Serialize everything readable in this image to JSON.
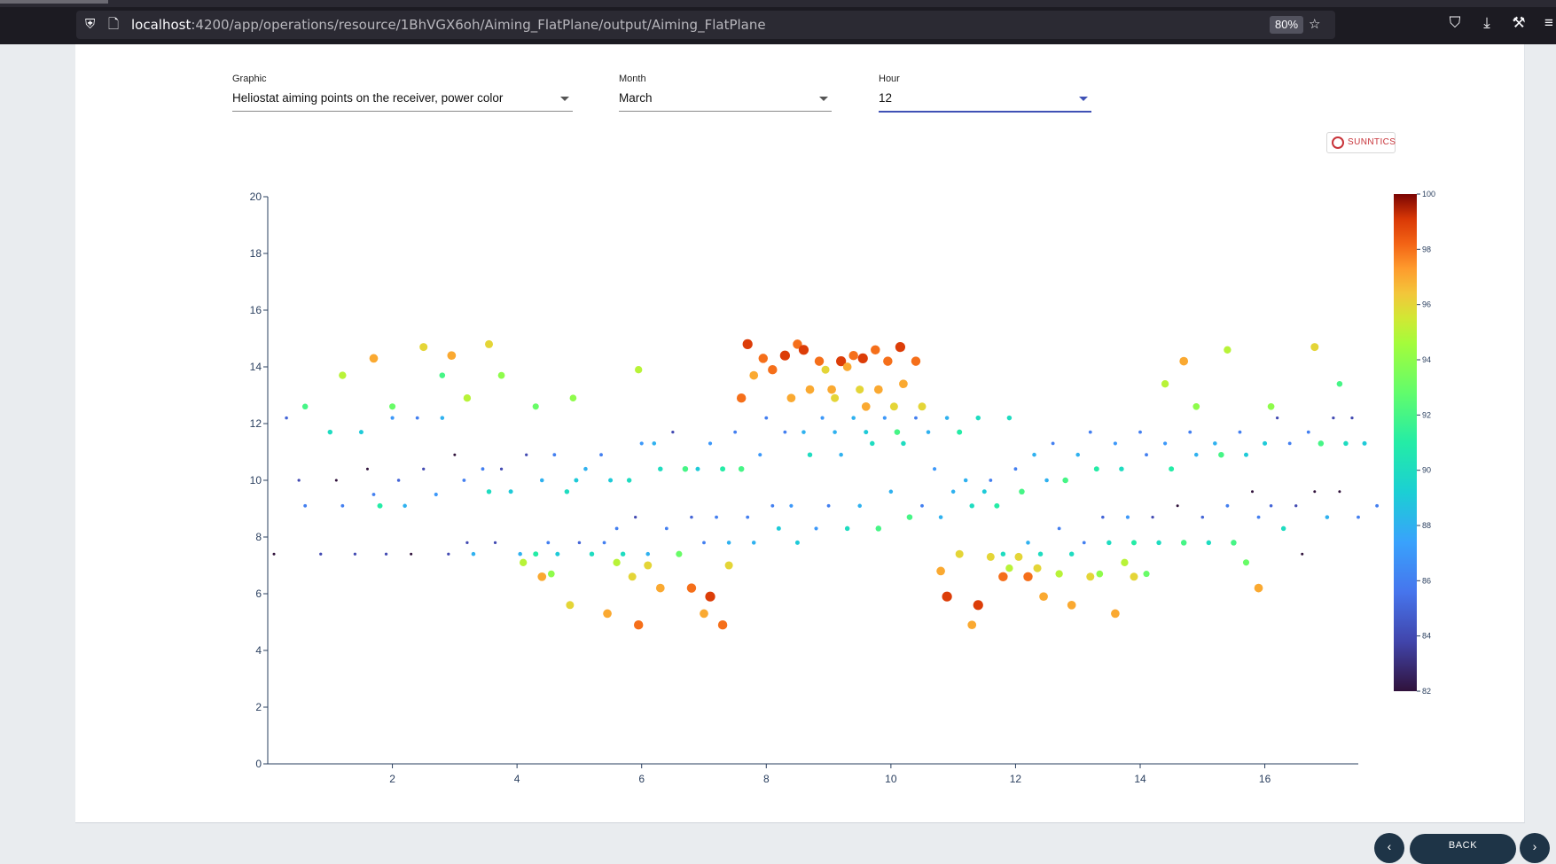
{
  "browser": {
    "url_host": "localhost",
    "url_rest": ":4200/app/operations/resource/1BhVGX6oh/Aiming_FlatPlane/output/Aiming_FlatPlane",
    "zoom": "80%"
  },
  "controls": {
    "graphic": {
      "label": "Graphic",
      "value": "Heliostat aiming points on the receiver, power color"
    },
    "month": {
      "label": "Month",
      "value": "March"
    },
    "hour": {
      "label": "Hour",
      "value": "12"
    }
  },
  "brand": {
    "name": "SUNNTICS",
    "color": "#c8343a"
  },
  "footer": {
    "back_label": "BACK"
  },
  "chart_data": {
    "type": "scatter",
    "xlim": [
      0,
      17.5
    ],
    "ylim": [
      0,
      20
    ],
    "x_ticks": [
      "2",
      "4",
      "6",
      "8",
      "10",
      "12",
      "14",
      "16"
    ],
    "y_ticks": [
      "0",
      "2",
      "4",
      "6",
      "8",
      "10",
      "12",
      "14",
      "16",
      "18",
      "20"
    ],
    "grid": false,
    "colorscale": "turbo",
    "color_range": [
      82,
      100
    ],
    "colorbar_ticks": [
      "82",
      "84",
      "86",
      "88",
      "90",
      "92",
      "94",
      "96",
      "98",
      "100"
    ],
    "points": [
      [
        0.1,
        7.4,
        82
      ],
      [
        0.3,
        12.2,
        85
      ],
      [
        0.5,
        10.0,
        84
      ],
      [
        0.6,
        9.1,
        86
      ],
      [
        0.6,
        12.6,
        92
      ],
      [
        0.85,
        7.4,
        84
      ],
      [
        1.0,
        11.7,
        90
      ],
      [
        1.1,
        10.0,
        82
      ],
      [
        1.2,
        9.1,
        86
      ],
      [
        1.4,
        7.4,
        84
      ],
      [
        1.5,
        11.7,
        89
      ],
      [
        1.6,
        10.4,
        82
      ],
      [
        1.7,
        9.5,
        86
      ],
      [
        1.8,
        9.1,
        91
      ],
      [
        1.9,
        7.4,
        84
      ],
      [
        2.0,
        12.2,
        87
      ],
      [
        2.1,
        10.0,
        85
      ],
      [
        2.2,
        9.1,
        88
      ],
      [
        2.3,
        7.4,
        82
      ],
      [
        2.4,
        12.2,
        86
      ],
      [
        2.5,
        10.4,
        84
      ],
      [
        2.7,
        9.5,
        87
      ],
      [
        2.8,
        12.2,
        88
      ],
      [
        2.9,
        7.4,
        84
      ],
      [
        3.0,
        10.9,
        82
      ],
      [
        3.15,
        10.0,
        86
      ],
      [
        3.2,
        7.8,
        84
      ],
      [
        3.3,
        7.4,
        88
      ],
      [
        3.45,
        10.4,
        86
      ],
      [
        3.55,
        9.6,
        90
      ],
      [
        3.65,
        7.8,
        84
      ],
      [
        3.75,
        10.4,
        84
      ],
      [
        3.9,
        9.6,
        89
      ],
      [
        4.05,
        7.4,
        88
      ],
      [
        4.15,
        10.9,
        84
      ],
      [
        4.3,
        7.4,
        91
      ],
      [
        4.4,
        10.0,
        88
      ],
      [
        4.5,
        7.8,
        86
      ],
      [
        4.6,
        10.9,
        86
      ],
      [
        4.65,
        7.4,
        89
      ],
      [
        4.8,
        9.6,
        90
      ],
      [
        4.95,
        10.0,
        89
      ],
      [
        5.0,
        7.8,
        85
      ],
      [
        5.1,
        10.4,
        88
      ],
      [
        5.2,
        7.4,
        90
      ],
      [
        5.35,
        10.9,
        86
      ],
      [
        5.4,
        7.8,
        86
      ],
      [
        5.5,
        10.0,
        89
      ],
      [
        5.6,
        8.3,
        86
      ],
      [
        5.7,
        7.4,
        90
      ],
      [
        5.8,
        10.0,
        90
      ],
      [
        5.9,
        8.7,
        84
      ],
      [
        6.0,
        11.3,
        87
      ],
      [
        6.1,
        7.4,
        88
      ],
      [
        6.2,
        11.3,
        88
      ],
      [
        6.3,
        10.4,
        90
      ],
      [
        6.4,
        8.3,
        86
      ],
      [
        6.5,
        11.7,
        84
      ],
      [
        6.6,
        7.4,
        93
      ],
      [
        6.7,
        10.4,
        92
      ],
      [
        6.8,
        8.7,
        85
      ],
      [
        6.9,
        10.4,
        89
      ],
      [
        7.0,
        7.8,
        86
      ],
      [
        7.1,
        11.3,
        87
      ],
      [
        7.2,
        8.7,
        86
      ],
      [
        7.3,
        10.4,
        91
      ],
      [
        7.4,
        7.8,
        88
      ],
      [
        7.5,
        11.7,
        86
      ],
      [
        7.6,
        10.4,
        92
      ],
      [
        7.7,
        8.7,
        86
      ],
      [
        7.8,
        7.8,
        88
      ],
      [
        7.9,
        10.9,
        87
      ],
      [
        8.0,
        12.2,
        86
      ],
      [
        8.1,
        9.1,
        86
      ],
      [
        8.2,
        8.3,
        89
      ],
      [
        8.3,
        11.7,
        86
      ],
      [
        8.4,
        9.1,
        87
      ],
      [
        8.5,
        7.8,
        89
      ],
      [
        8.6,
        11.7,
        88
      ],
      [
        8.7,
        10.9,
        90
      ],
      [
        8.8,
        8.3,
        87
      ],
      [
        8.9,
        12.2,
        87
      ],
      [
        9.0,
        9.1,
        86
      ],
      [
        9.1,
        11.7,
        88
      ],
      [
        9.2,
        10.9,
        88
      ],
      [
        9.3,
        8.3,
        90
      ],
      [
        9.4,
        12.2,
        88
      ],
      [
        9.5,
        9.1,
        88
      ],
      [
        9.6,
        11.7,
        89
      ],
      [
        9.7,
        11.3,
        90
      ],
      [
        9.8,
        8.3,
        92
      ],
      [
        9.9,
        12.2,
        87
      ],
      [
        10.0,
        9.6,
        88
      ],
      [
        10.1,
        11.7,
        92
      ],
      [
        10.2,
        11.3,
        90
      ],
      [
        10.3,
        8.7,
        92
      ],
      [
        10.4,
        12.2,
        86
      ],
      [
        10.5,
        9.1,
        86
      ],
      [
        10.6,
        11.7,
        88
      ],
      [
        10.7,
        10.4,
        87
      ],
      [
        10.8,
        8.7,
        88
      ],
      [
        10.9,
        12.2,
        88
      ],
      [
        11.0,
        9.6,
        88
      ],
      [
        11.1,
        11.7,
        91
      ],
      [
        11.2,
        10.0,
        88
      ],
      [
        11.3,
        9.1,
        90
      ],
      [
        11.4,
        12.2,
        90
      ],
      [
        11.5,
        9.6,
        89
      ],
      [
        11.6,
        10.0,
        86
      ],
      [
        11.7,
        9.1,
        91
      ],
      [
        11.8,
        7.4,
        90
      ],
      [
        11.9,
        12.2,
        90
      ],
      [
        12.0,
        10.4,
        86
      ],
      [
        12.1,
        9.6,
        92
      ],
      [
        12.2,
        7.8,
        88
      ],
      [
        12.3,
        10.9,
        88
      ],
      [
        12.4,
        7.4,
        90
      ],
      [
        12.5,
        10.0,
        88
      ],
      [
        12.6,
        11.3,
        86
      ],
      [
        12.7,
        8.3,
        86
      ],
      [
        12.8,
        10.0,
        92
      ],
      [
        12.9,
        7.4,
        90
      ],
      [
        13.0,
        10.9,
        88
      ],
      [
        13.1,
        7.8,
        86
      ],
      [
        13.2,
        11.7,
        86
      ],
      [
        13.3,
        10.4,
        91
      ],
      [
        13.4,
        8.7,
        85
      ],
      [
        13.5,
        7.8,
        90
      ],
      [
        13.6,
        11.3,
        87
      ],
      [
        13.7,
        10.4,
        90
      ],
      [
        13.8,
        8.7,
        87
      ],
      [
        13.9,
        7.8,
        91
      ],
      [
        14.0,
        11.7,
        86
      ],
      [
        14.1,
        10.9,
        86
      ],
      [
        14.2,
        8.7,
        84
      ],
      [
        14.3,
        7.8,
        90
      ],
      [
        14.4,
        11.3,
        87
      ],
      [
        14.5,
        10.4,
        91
      ],
      [
        14.6,
        9.1,
        82
      ],
      [
        14.7,
        7.8,
        92
      ],
      [
        14.8,
        11.7,
        86
      ],
      [
        14.9,
        10.9,
        88
      ],
      [
        15.0,
        8.7,
        85
      ],
      [
        15.1,
        7.8,
        90
      ],
      [
        15.2,
        11.3,
        88
      ],
      [
        15.3,
        10.9,
        92
      ],
      [
        15.4,
        9.1,
        86
      ],
      [
        15.5,
        7.8,
        92
      ],
      [
        15.6,
        11.7,
        86
      ],
      [
        15.7,
        10.9,
        89
      ],
      [
        15.8,
        9.6,
        82
      ],
      [
        15.9,
        8.7,
        86
      ],
      [
        16.0,
        11.3,
        89
      ],
      [
        16.1,
        9.1,
        85
      ],
      [
        16.2,
        12.2,
        84
      ],
      [
        16.3,
        8.3,
        90
      ],
      [
        16.4,
        11.3,
        86
      ],
      [
        16.5,
        9.1,
        84
      ],
      [
        16.6,
        7.4,
        82
      ],
      [
        16.7,
        11.7,
        86
      ],
      [
        16.8,
        9.6,
        82
      ],
      [
        16.9,
        11.3,
        92
      ],
      [
        17.0,
        8.7,
        88
      ],
      [
        17.1,
        12.2,
        84
      ],
      [
        17.2,
        9.6,
        82
      ],
      [
        17.3,
        11.3,
        90
      ],
      [
        17.4,
        12.2,
        84
      ],
      [
        17.5,
        8.7,
        86
      ],
      [
        17.6,
        11.3,
        89
      ],
      [
        17.8,
        9.1,
        86
      ],
      [
        1.2,
        13.7,
        95
      ],
      [
        1.7,
        14.3,
        97
      ],
      [
        2.0,
        12.6,
        93
      ],
      [
        2.5,
        14.7,
        96
      ],
      [
        2.8,
        13.7,
        92
      ],
      [
        2.95,
        14.4,
        97
      ],
      [
        3.2,
        12.9,
        95
      ],
      [
        3.55,
        14.8,
        96
      ],
      [
        3.75,
        13.7,
        94
      ],
      [
        4.3,
        12.6,
        93
      ],
      [
        4.9,
        12.9,
        94
      ],
      [
        5.95,
        13.9,
        95
      ],
      [
        4.1,
        7.1,
        95
      ],
      [
        4.4,
        6.6,
        97
      ],
      [
        4.55,
        6.7,
        94
      ],
      [
        4.85,
        5.6,
        96
      ],
      [
        5.45,
        5.3,
        97
      ],
      [
        5.6,
        7.1,
        95
      ],
      [
        5.85,
        6.6,
        96
      ],
      [
        5.95,
        4.9,
        98
      ],
      [
        6.1,
        7.0,
        96
      ],
      [
        6.3,
        6.2,
        97
      ],
      [
        6.8,
        6.2,
        98
      ],
      [
        7.0,
        5.3,
        97
      ],
      [
        7.1,
        5.9,
        99
      ],
      [
        7.3,
        4.9,
        98
      ],
      [
        7.4,
        7.0,
        96
      ],
      [
        7.6,
        12.9,
        98
      ],
      [
        7.7,
        14.8,
        99
      ],
      [
        7.8,
        13.7,
        97
      ],
      [
        7.95,
        14.3,
        98
      ],
      [
        8.1,
        13.9,
        98
      ],
      [
        8.3,
        14.4,
        99
      ],
      [
        8.4,
        12.9,
        97
      ],
      [
        8.5,
        14.8,
        98
      ],
      [
        8.6,
        14.6,
        99
      ],
      [
        8.7,
        13.2,
        97
      ],
      [
        8.85,
        14.2,
        98
      ],
      [
        8.95,
        13.9,
        96
      ],
      [
        9.05,
        13.2,
        97
      ],
      [
        9.1,
        12.9,
        96
      ],
      [
        9.2,
        14.2,
        99
      ],
      [
        9.3,
        14.0,
        97
      ],
      [
        9.4,
        14.4,
        98
      ],
      [
        9.5,
        13.2,
        96
      ],
      [
        9.55,
        14.3,
        99
      ],
      [
        9.6,
        12.6,
        97
      ],
      [
        9.75,
        14.6,
        98
      ],
      [
        9.8,
        13.2,
        97
      ],
      [
        9.95,
        14.2,
        98
      ],
      [
        10.05,
        12.6,
        96
      ],
      [
        10.15,
        14.7,
        99
      ],
      [
        10.2,
        13.4,
        97
      ],
      [
        10.4,
        14.2,
        98
      ],
      [
        10.5,
        12.6,
        96
      ],
      [
        10.8,
        6.8,
        97
      ],
      [
        10.9,
        5.9,
        99
      ],
      [
        11.1,
        7.4,
        96
      ],
      [
        11.3,
        4.9,
        97
      ],
      [
        11.4,
        5.6,
        99
      ],
      [
        11.6,
        7.3,
        96
      ],
      [
        11.8,
        6.6,
        98
      ],
      [
        11.9,
        6.9,
        95
      ],
      [
        12.05,
        7.3,
        96
      ],
      [
        12.2,
        6.6,
        98
      ],
      [
        12.35,
        6.9,
        96
      ],
      [
        12.45,
        5.9,
        97
      ],
      [
        12.7,
        6.7,
        95
      ],
      [
        12.9,
        5.6,
        97
      ],
      [
        13.2,
        6.6,
        96
      ],
      [
        13.35,
        6.7,
        94
      ],
      [
        13.6,
        5.3,
        97
      ],
      [
        13.75,
        7.1,
        95
      ],
      [
        13.9,
        6.6,
        96
      ],
      [
        14.1,
        6.7,
        93
      ],
      [
        14.4,
        13.4,
        95
      ],
      [
        14.7,
        14.2,
        97
      ],
      [
        14.9,
        12.6,
        94
      ],
      [
        15.4,
        14.6,
        95
      ],
      [
        15.9,
        6.2,
        97
      ],
      [
        15.7,
        7.1,
        93
      ],
      [
        16.1,
        12.6,
        94
      ],
      [
        16.8,
        14.7,
        96
      ],
      [
        17.2,
        13.4,
        92
      ]
    ]
  }
}
